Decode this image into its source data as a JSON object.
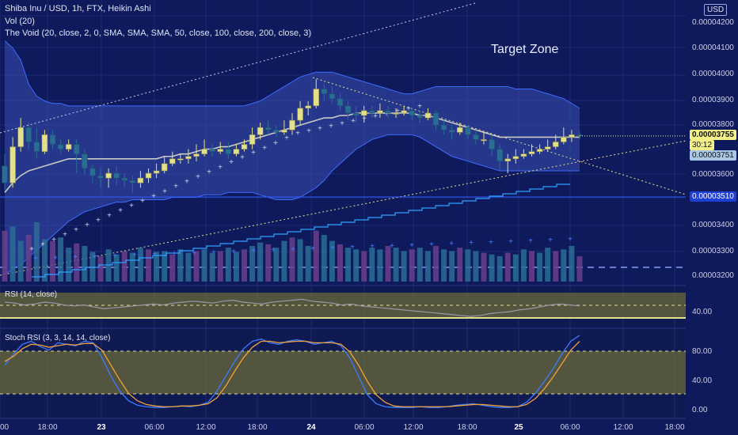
{
  "header": {
    "title_line": "Shiba Inu / USD, 1h, FTX, Heikin Ashi",
    "vol_line": "Vol (20)",
    "indicator_line": "The Void (20, close, 2, 0, SMA, SMA, SMA, 50, close, 100, close, 200, close, 3)",
    "currency_button": "USD"
  },
  "annotation": {
    "target_zone": "Target Zone"
  },
  "price_axis": {
    "ticks": [
      "0.00004200",
      "0.00004100",
      "0.00004000",
      "0.00003900",
      "0.00003800",
      "0.00003600",
      "0.00003400",
      "0.00003300",
      "0.00003200"
    ],
    "last_price": "0.00003755",
    "countdown": "30:12",
    "level_a": "0.00003751",
    "level_b": "0.00003510"
  },
  "time_axis": {
    "ticks": [
      "00",
      "18:00",
      "23",
      "06:00",
      "12:00",
      "18:00",
      "24",
      "06:00",
      "12:00",
      "18:00",
      "25",
      "06:00",
      "12:00",
      "18:00"
    ]
  },
  "rsi": {
    "label": "RSI (14, close)",
    "ticks": [
      "40.00"
    ]
  },
  "stoch": {
    "label": "Stoch RSI (3, 3, 14, 14, close)",
    "ticks": [
      "80.00",
      "40.00",
      "0.00"
    ]
  },
  "colors": {
    "background": "#0f1a5c",
    "candle_up": "#e3e08a",
    "candle_down": "#2a6d94",
    "band_fill": "#3b4fb0",
    "price_tag": "#f3f088",
    "level_tag": "#1e3fd6"
  },
  "chart_data": [
    {
      "type": "candlestick",
      "title": "Shiba Inu / USD, 1h, FTX, Heikin Ashi",
      "y_range": [
        3.15e-05,
        4.3e-05
      ],
      "candles": [
        {
          "o": 3.63e-05,
          "c": 3.56e-05,
          "h": 3.68e-05,
          "l": 3.53e-05
        },
        {
          "o": 3.56e-05,
          "c": 3.71e-05,
          "h": 3.75e-05,
          "l": 3.54e-05
        },
        {
          "o": 3.71e-05,
          "c": 3.79e-05,
          "h": 3.83e-05,
          "l": 3.69e-05
        },
        {
          "o": 3.79e-05,
          "c": 3.73e-05,
          "h": 3.81e-05,
          "l": 3.7e-05
        },
        {
          "o": 3.73e-05,
          "c": 3.69e-05,
          "h": 3.79e-05,
          "l": 3.66e-05
        },
        {
          "o": 3.69e-05,
          "c": 3.76e-05,
          "h": 3.78e-05,
          "l": 3.68e-05
        },
        {
          "o": 3.76e-05,
          "c": 3.72e-05,
          "h": 3.78e-05,
          "l": 3.7e-05
        },
        {
          "o": 3.72e-05,
          "c": 3.7e-05,
          "h": 3.74e-05,
          "l": 3.68e-05
        },
        {
          "o": 3.7e-05,
          "c": 3.72e-05,
          "h": 3.74e-05,
          "l": 3.69e-05
        },
        {
          "o": 3.72e-05,
          "c": 3.68e-05,
          "h": 3.74e-05,
          "l": 3.6e-05
        },
        {
          "o": 3.68e-05,
          "c": 3.62e-05,
          "h": 3.7e-05,
          "l": 3.59e-05
        },
        {
          "o": 3.62e-05,
          "c": 3.59e-05,
          "h": 3.64e-05,
          "l": 3.56e-05
        },
        {
          "o": 3.59e-05,
          "c": 3.58e-05,
          "h": 3.62e-05,
          "l": 3.54e-05
        },
        {
          "o": 3.58e-05,
          "c": 3.6e-05,
          "h": 3.62e-05,
          "l": 3.54e-05
        },
        {
          "o": 3.6e-05,
          "c": 3.58e-05,
          "h": 3.63e-05,
          "l": 3.55e-05
        },
        {
          "o": 3.58e-05,
          "c": 3.57e-05,
          "h": 3.6e-05,
          "l": 3.54e-05
        },
        {
          "o": 3.57e-05,
          "c": 3.56e-05,
          "h": 3.59e-05,
          "l": 3.52e-05
        },
        {
          "o": 3.56e-05,
          "c": 3.58e-05,
          "h": 3.61e-05,
          "l": 3.54e-05
        },
        {
          "o": 3.58e-05,
          "c": 3.6e-05,
          "h": 3.62e-05,
          "l": 3.56e-05
        },
        {
          "o": 3.6e-05,
          "c": 3.61e-05,
          "h": 3.64e-05,
          "l": 3.58e-05
        },
        {
          "o": 3.61e-05,
          "c": 3.64e-05,
          "h": 3.67e-05,
          "l": 3.6e-05
        },
        {
          "o": 3.64e-05,
          "c": 3.66e-05,
          "h": 3.69e-05,
          "l": 3.63e-05
        },
        {
          "o": 3.66e-05,
          "c": 3.66e-05,
          "h": 3.68e-05,
          "l": 3.64e-05
        },
        {
          "o": 3.66e-05,
          "c": 3.67e-05,
          "h": 3.7e-05,
          "l": 3.64e-05
        },
        {
          "o": 3.67e-05,
          "c": 3.68e-05,
          "h": 3.72e-05,
          "l": 3.65e-05
        },
        {
          "o": 3.68e-05,
          "c": 3.7e-05,
          "h": 3.74e-05,
          "l": 3.67e-05
        },
        {
          "o": 3.7e-05,
          "c": 3.69e-05,
          "h": 3.72e-05,
          "l": 3.67e-05
        },
        {
          "o": 3.69e-05,
          "c": 3.7e-05,
          "h": 3.73e-05,
          "l": 3.68e-05
        },
        {
          "o": 3.7e-05,
          "c": 3.68e-05,
          "h": 3.73e-05,
          "l": 3.66e-05
        },
        {
          "o": 3.68e-05,
          "c": 3.7e-05,
          "h": 3.72e-05,
          "l": 3.67e-05
        },
        {
          "o": 3.7e-05,
          "c": 3.72e-05,
          "h": 3.74e-05,
          "l": 3.69e-05
        },
        {
          "o": 3.72e-05,
          "c": 3.76e-05,
          "h": 3.79e-05,
          "l": 3.7e-05
        },
        {
          "o": 3.76e-05,
          "c": 3.79e-05,
          "h": 3.81e-05,
          "l": 3.74e-05
        },
        {
          "o": 3.79e-05,
          "c": 3.78e-05,
          "h": 3.82e-05,
          "l": 3.76e-05
        },
        {
          "o": 3.78e-05,
          "c": 3.77e-05,
          "h": 3.8e-05,
          "l": 3.75e-05
        },
        {
          "o": 3.77e-05,
          "c": 3.78e-05,
          "h": 3.82e-05,
          "l": 3.76e-05
        },
        {
          "o": 3.78e-05,
          "c": 3.82e-05,
          "h": 3.85e-05,
          "l": 3.76e-05
        },
        {
          "o": 3.82e-05,
          "c": 3.87e-05,
          "h": 3.9e-05,
          "l": 3.8e-05
        },
        {
          "o": 3.87e-05,
          "c": 3.88e-05,
          "h": 3.9e-05,
          "l": 3.84e-05
        },
        {
          "o": 3.88e-05,
          "c": 3.95e-05,
          "h": 3.99e-05,
          "l": 3.87e-05
        },
        {
          "o": 3.95e-05,
          "c": 3.93e-05,
          "h": 3.97e-05,
          "l": 3.9e-05
        },
        {
          "o": 3.93e-05,
          "c": 3.91e-05,
          "h": 3.96e-05,
          "l": 3.89e-05
        },
        {
          "o": 3.91e-05,
          "c": 3.88e-05,
          "h": 3.93e-05,
          "l": 3.86e-05
        },
        {
          "o": 3.88e-05,
          "c": 3.85e-05,
          "h": 3.9e-05,
          "l": 3.82e-05
        },
        {
          "o": 3.85e-05,
          "c": 3.84e-05,
          "h": 3.88e-05,
          "l": 3.81e-05
        },
        {
          "o": 3.84e-05,
          "c": 3.86e-05,
          "h": 3.88e-05,
          "l": 3.81e-05
        },
        {
          "o": 3.86e-05,
          "c": 3.85e-05,
          "h": 3.88e-05,
          "l": 3.83e-05
        },
        {
          "o": 3.85e-05,
          "c": 3.86e-05,
          "h": 3.89e-05,
          "l": 3.83e-05
        },
        {
          "o": 3.86e-05,
          "c": 3.85e-05,
          "h": 3.88e-05,
          "l": 3.83e-05
        },
        {
          "o": 3.85e-05,
          "c": 3.85e-05,
          "h": 3.87e-05,
          "l": 3.83e-05
        },
        {
          "o": 3.85e-05,
          "c": 3.86e-05,
          "h": 3.88e-05,
          "l": 3.84e-05
        },
        {
          "o": 3.86e-05,
          "c": 3.84e-05,
          "h": 3.87e-05,
          "l": 3.82e-05
        },
        {
          "o": 3.84e-05,
          "c": 3.83e-05,
          "h": 3.86e-05,
          "l": 3.81e-05
        },
        {
          "o": 3.83e-05,
          "c": 3.85e-05,
          "h": 3.87e-05,
          "l": 3.82e-05
        },
        {
          "o": 3.85e-05,
          "c": 3.8e-05,
          "h": 3.86e-05,
          "l": 3.78e-05
        },
        {
          "o": 3.8e-05,
          "c": 3.78e-05,
          "h": 3.82e-05,
          "l": 3.76e-05
        },
        {
          "o": 3.78e-05,
          "c": 3.77e-05,
          "h": 3.8e-05,
          "l": 3.74e-05
        },
        {
          "o": 3.77e-05,
          "c": 3.79e-05,
          "h": 3.81e-05,
          "l": 3.76e-05
        },
        {
          "o": 3.79e-05,
          "c": 3.76e-05,
          "h": 3.8e-05,
          "l": 3.74e-05
        },
        {
          "o": 3.76e-05,
          "c": 3.74e-05,
          "h": 3.78e-05,
          "l": 3.72e-05
        },
        {
          "o": 3.74e-05,
          "c": 3.74e-05,
          "h": 3.77e-05,
          "l": 3.72e-05
        },
        {
          "o": 3.74e-05,
          "c": 3.7e-05,
          "h": 3.76e-05,
          "l": 3.67e-05
        },
        {
          "o": 3.7e-05,
          "c": 3.65e-05,
          "h": 3.72e-05,
          "l": 3.61e-05
        },
        {
          "o": 3.65e-05,
          "c": 3.66e-05,
          "h": 3.68e-05,
          "l": 3.6e-05
        },
        {
          "o": 3.66e-05,
          "c": 3.67e-05,
          "h": 3.7e-05,
          "l": 3.64e-05
        },
        {
          "o": 3.67e-05,
          "c": 3.68e-05,
          "h": 3.7e-05,
          "l": 3.66e-05
        },
        {
          "o": 3.68e-05,
          "c": 3.69e-05,
          "h": 3.72e-05,
          "l": 3.67e-05
        },
        {
          "o": 3.69e-05,
          "c": 3.7e-05,
          "h": 3.72e-05,
          "l": 3.68e-05
        },
        {
          "o": 3.7e-05,
          "c": 3.71e-05,
          "h": 3.74e-05,
          "l": 3.69e-05
        },
        {
          "o": 3.71e-05,
          "c": 3.73e-05,
          "h": 3.76e-05,
          "l": 3.7e-05
        },
        {
          "o": 3.73e-05,
          "c": 3.75e-05,
          "h": 3.79e-05,
          "l": 3.72e-05
        },
        {
          "o": 3.75e-05,
          "c": 3.76e-05,
          "h": 3.78e-05,
          "l": 3.73e-05
        },
        {
          "o": 3.76e-05,
          "c": 3.755e-05,
          "h": 3.77e-05,
          "l": 3.74e-05
        }
      ],
      "basis": [
        3.52e-05,
        3.56e-05,
        3.59e-05,
        3.61e-05,
        3.62e-05,
        3.63e-05,
        3.64e-05,
        3.65e-05,
        3.66e-05,
        3.66e-05,
        3.66e-05,
        3.66e-05,
        3.66e-05,
        3.66e-05,
        3.66e-05,
        3.66e-05,
        3.66e-05,
        3.66e-05,
        3.66e-05,
        3.66e-05,
        3.67e-05,
        3.67e-05,
        3.68e-05,
        3.68e-05,
        3.69e-05,
        3.7e-05,
        3.7e-05,
        3.71e-05,
        3.71e-05,
        3.72e-05,
        3.73e-05,
        3.74e-05,
        3.75e-05,
        3.76e-05,
        3.77e-05,
        3.78e-05,
        3.79e-05,
        3.8e-05,
        3.81e-05,
        3.82e-05,
        3.83e-05,
        3.83e-05,
        3.84e-05,
        3.84e-05,
        3.85e-05,
        3.85e-05,
        3.85e-05,
        3.85e-05,
        3.85e-05,
        3.85e-05,
        3.85e-05,
        3.85e-05,
        3.84e-05,
        3.84e-05,
        3.83e-05,
        3.82e-05,
        3.81e-05,
        3.8e-05,
        3.79e-05,
        3.78e-05,
        3.77e-05,
        3.76e-05,
        3.75e-05,
        3.75e-05,
        3.75e-05,
        3.75e-05,
        3.75e-05,
        3.75e-05,
        3.75e-05,
        3.75e-05,
        3.75e-05,
        3.75e-05,
        3.75e-05
      ],
      "upper_band": [
        4.15e-05,
        4.12e-05,
        4.07e-05,
        3.97e-05,
        3.92e-05,
        3.9e-05,
        3.89e-05,
        3.89e-05,
        3.88e-05,
        3.88e-05,
        3.88e-05,
        3.88e-05,
        3.88e-05,
        3.88e-05,
        3.88e-05,
        3.88e-05,
        3.88e-05,
        3.88e-05,
        3.88e-05,
        3.88e-05,
        3.88e-05,
        3.88e-05,
        3.88e-05,
        3.88e-05,
        3.88e-05,
        3.88e-05,
        3.88e-05,
        3.88e-05,
        3.88e-05,
        3.88e-05,
        3.88e-05,
        3.89e-05,
        3.9e-05,
        3.92e-05,
        3.94e-05,
        3.96e-05,
        3.98e-05,
        4e-05,
        4.01e-05,
        4.02e-05,
        4.02e-05,
        4.02e-05,
        4.01e-05,
        4e-05,
        3.99e-05,
        3.98e-05,
        3.97e-05,
        3.96e-05,
        3.95e-05,
        3.94e-05,
        3.93e-05,
        3.93e-05,
        3.94e-05,
        3.95e-05,
        3.96e-05,
        3.96e-05,
        3.96e-05,
        3.96e-05,
        3.96e-05,
        3.96e-05,
        3.96e-05,
        3.96e-05,
        3.96e-05,
        3.96e-05,
        3.95e-05,
        3.95e-05,
        3.95e-05,
        3.94e-05,
        3.93e-05,
        3.92e-05,
        3.91e-05,
        3.89e-05,
        3.87e-05
      ],
      "lower_band": [
        3.18e-05,
        3.2e-05,
        3.22e-05,
        3.25e-05,
        3.28e-05,
        3.31e-05,
        3.34e-05,
        3.37e-05,
        3.4e-05,
        3.42e-05,
        3.44e-05,
        3.45e-05,
        3.46e-05,
        3.47e-05,
        3.48e-05,
        3.48e-05,
        3.49e-05,
        3.49e-05,
        3.49e-05,
        3.49e-05,
        3.49e-05,
        3.5e-05,
        3.5e-05,
        3.5e-05,
        3.5e-05,
        3.51e-05,
        3.51e-05,
        3.51e-05,
        3.52e-05,
        3.52e-05,
        3.52e-05,
        3.52e-05,
        3.51e-05,
        3.5e-05,
        3.49e-05,
        3.49e-05,
        3.49e-05,
        3.5e-05,
        3.52e-05,
        3.54e-05,
        3.57e-05,
        3.61e-05,
        3.64e-05,
        3.67e-05,
        3.7e-05,
        3.72e-05,
        3.74e-05,
        3.75e-05,
        3.76e-05,
        3.76e-05,
        3.76e-05,
        3.76e-05,
        3.75e-05,
        3.73e-05,
        3.71e-05,
        3.69e-05,
        3.67e-05,
        3.66e-05,
        3.65e-05,
        3.64e-05,
        3.63e-05,
        3.62e-05,
        3.61e-05,
        3.61e-05,
        3.61e-05,
        3.61e-05,
        3.61e-05,
        3.61e-05,
        3.61e-05,
        3.61e-05,
        3.61e-05,
        3.61e-05,
        3.61e-05
      ],
      "volume": [
        60,
        65,
        48,
        55,
        70,
        50,
        48,
        52,
        40,
        45,
        42,
        35,
        30,
        38,
        32,
        36,
        34,
        40,
        38,
        35,
        36,
        32,
        38,
        34,
        36,
        38,
        34,
        36,
        40,
        35,
        38,
        42,
        46,
        44,
        40,
        48,
        52,
        50,
        42,
        60,
        55,
        48,
        44,
        40,
        38,
        36,
        40,
        38,
        42,
        40,
        36,
        38,
        40,
        36,
        42,
        38,
        36,
        40,
        38,
        36,
        34,
        32,
        30,
        34,
        32,
        38,
        36,
        34,
        40,
        36,
        38,
        42,
        30
      ]
    },
    {
      "type": "line",
      "title": "RSI (14, close)",
      "y_range": [
        30,
        70
      ],
      "series": [
        {
          "values": [
            55,
            54,
            52,
            53,
            55,
            54,
            52,
            51,
            52,
            50,
            48,
            49,
            50,
            51,
            52,
            53,
            52,
            54,
            55,
            56,
            55,
            54,
            56,
            57,
            55,
            54,
            53,
            55,
            56,
            57,
            58,
            56,
            55,
            54,
            52,
            53,
            51,
            50,
            49,
            48,
            47,
            46,
            45,
            44,
            43,
            42,
            41,
            40,
            41,
            43,
            44,
            45,
            47,
            48,
            50,
            52,
            53,
            52,
            51
          ]
        }
      ]
    },
    {
      "type": "line",
      "title": "Stoch RSI (3, 3, 14, 14, close)",
      "y_range": [
        0,
        100
      ],
      "series": [
        {
          "values": [
            60,
            75,
            88,
            92,
            85,
            80,
            90,
            88,
            86,
            92,
            90,
            70,
            45,
            25,
            12,
            6,
            4,
            3,
            3,
            4,
            5,
            4,
            6,
            10,
            25,
            45,
            65,
            82,
            92,
            95,
            90,
            88,
            92,
            94,
            92,
            88,
            90,
            92,
            86,
            70,
            45,
            20,
            8,
            4,
            3,
            3,
            3,
            4,
            3,
            3,
            4,
            6,
            7,
            8,
            6,
            4,
            3,
            3,
            4,
            10,
            22,
            38,
            55,
            75,
            92,
            100
          ]
        },
        {
          "values": [
            65,
            72,
            82,
            88,
            87,
            84,
            86,
            88,
            87,
            89,
            89,
            80,
            60,
            40,
            22,
            12,
            7,
            5,
            4,
            4,
            5,
            5,
            6,
            8,
            16,
            32,
            52,
            70,
            84,
            92,
            92,
            90,
            91,
            92,
            92,
            90,
            90,
            90,
            88,
            78,
            60,
            38,
            20,
            10,
            5,
            4,
            4,
            4,
            4,
            4,
            4,
            5,
            6,
            7,
            7,
            6,
            5,
            4,
            4,
            7,
            15,
            28,
            44,
            62,
            80,
            92
          ]
        }
      ]
    }
  ]
}
